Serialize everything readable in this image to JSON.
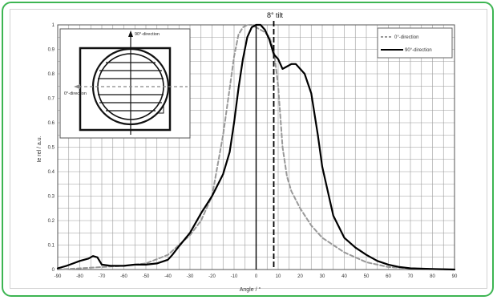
{
  "chart_data": {
    "type": "line",
    "title": "",
    "xlabel": "Angle / °",
    "ylabel": "Ie rel / a.u.",
    "xlim": [
      -90,
      90
    ],
    "ylim": [
      0,
      1
    ],
    "xticks": [
      -90,
      -80,
      -70,
      -60,
      -50,
      -40,
      -30,
      -20,
      -10,
      0,
      10,
      20,
      30,
      40,
      50,
      60,
      70,
      80,
      90
    ],
    "yticks": [
      0,
      0.1,
      0.2,
      0.3,
      0.4,
      0.5,
      0.6,
      0.7,
      0.8,
      0.9,
      1
    ],
    "xtick_labels": [
      "-90",
      "-80",
      "-70",
      "-60",
      "-50",
      "-40",
      "-30",
      "-20",
      "-10",
      "0",
      "10",
      "20",
      "30",
      "40",
      "50",
      "60",
      "70",
      "80",
      "90"
    ],
    "ytick_labels": [
      "0",
      "0.1",
      "0.2",
      "0.3",
      "0.4",
      "0.5",
      "0.6",
      "0.7",
      "0.8",
      "0.9",
      "1"
    ],
    "grid": true,
    "legend_position": "top-right",
    "series": [
      {
        "name": "0°-direction",
        "style": "dashed",
        "color": "#999999",
        "x": [
          -90,
          -80,
          -70,
          -60,
          -50,
          -40,
          -30,
          -25,
          -20,
          -15,
          -12,
          -10,
          -8,
          -6,
          -4,
          -2,
          0,
          2,
          4,
          6,
          8,
          10,
          12,
          14,
          16,
          20,
          25,
          30,
          40,
          50,
          60,
          70,
          80,
          90
        ],
        "y": [
          0.0,
          0.005,
          0.01,
          0.015,
          0.025,
          0.06,
          0.14,
          0.2,
          0.3,
          0.55,
          0.74,
          0.87,
          0.96,
          0.99,
          1.0,
          1.0,
          0.99,
          0.98,
          0.97,
          0.95,
          0.9,
          0.75,
          0.5,
          0.38,
          0.32,
          0.25,
          0.18,
          0.13,
          0.07,
          0.03,
          0.01,
          0.005,
          0.002,
          0.0
        ]
      },
      {
        "name": "90°-direction",
        "style": "solid",
        "color": "#000000",
        "x": [
          -90,
          -86,
          -83,
          -80,
          -76,
          -74,
          -72,
          -70,
          -66,
          -60,
          -55,
          -50,
          -45,
          -40,
          -38,
          -35,
          -30,
          -25,
          -20,
          -15,
          -12,
          -10,
          -8,
          -6,
          -4,
          -2,
          0,
          2,
          4,
          6,
          8,
          10,
          12,
          14,
          16,
          18,
          20,
          22,
          25,
          28,
          30,
          35,
          40,
          45,
          50,
          55,
          60,
          65,
          70,
          80,
          90
        ],
        "y": [
          0.005,
          0.015,
          0.025,
          0.035,
          0.045,
          0.055,
          0.05,
          0.02,
          0.015,
          0.015,
          0.02,
          0.02,
          0.025,
          0.04,
          0.06,
          0.095,
          0.15,
          0.23,
          0.3,
          0.39,
          0.48,
          0.6,
          0.74,
          0.86,
          0.95,
          0.99,
          1.0,
          1.0,
          0.98,
          0.94,
          0.88,
          0.86,
          0.82,
          0.83,
          0.84,
          0.84,
          0.82,
          0.8,
          0.72,
          0.55,
          0.42,
          0.22,
          0.13,
          0.09,
          0.06,
          0.035,
          0.02,
          0.01,
          0.005,
          0.002,
          0.0
        ]
      }
    ],
    "annotations": [
      {
        "text": "8° tilt",
        "x": 8,
        "style": "dashed-vertical-line"
      }
    ]
  },
  "inset": {
    "label_90": "90°-direction",
    "label_0": "0°-direction"
  }
}
